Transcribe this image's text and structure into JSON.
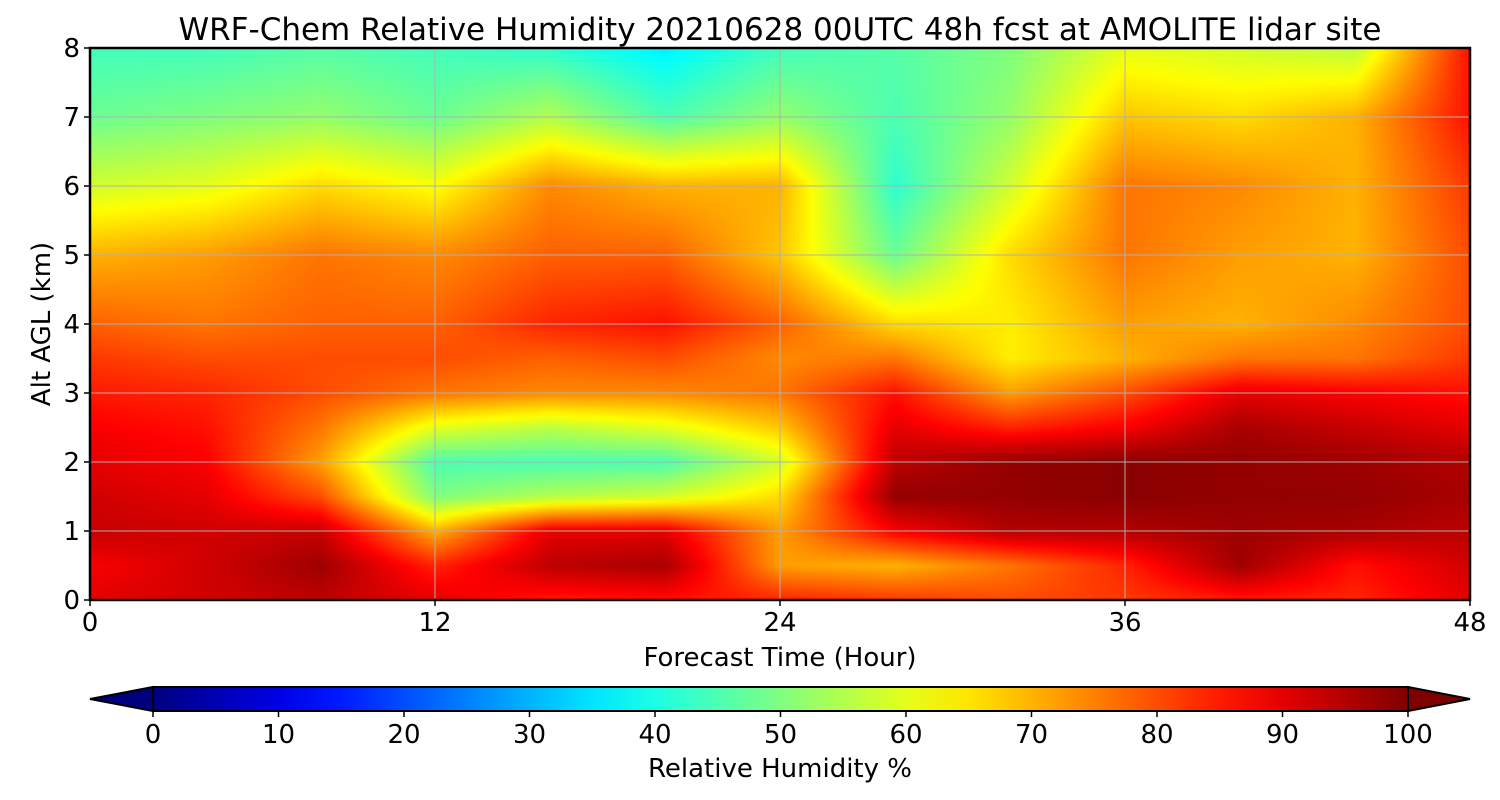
{
  "chart_data": {
    "type": "heatmap",
    "title": "WRF-Chem Relative Humidity 20210628 00UTC 48h fcst at AMOLITE lidar site",
    "xlabel": "Forecast Time (Hour)",
    "ylabel": "Alt AGL (km)",
    "xlim": [
      0,
      48
    ],
    "ylim": [
      0,
      8
    ],
    "xticks": [
      "0",
      "12",
      "24",
      "36",
      "48"
    ],
    "yticks": [
      "0",
      "1",
      "2",
      "3",
      "4",
      "5",
      "6",
      "7",
      "8"
    ],
    "grid": true,
    "colormap": "jet",
    "colorbar": {
      "label": "Relative Humidity %",
      "min": 0,
      "max": 100,
      "ticks": [
        "0",
        "10",
        "20",
        "30",
        "40",
        "50",
        "60",
        "70",
        "80",
        "90",
        "100"
      ],
      "extend": "both"
    },
    "x": [
      0,
      4,
      8,
      12,
      16,
      20,
      24,
      28,
      32,
      36,
      40,
      44,
      48
    ],
    "y": [
      0,
      0.5,
      1,
      1.5,
      2,
      2.5,
      3,
      3.5,
      4,
      5,
      6,
      7,
      8
    ],
    "z": [
      [
        90,
        92,
        94,
        90,
        85,
        86,
        84,
        82,
        80,
        82,
        85,
        84,
        90
      ],
      [
        88,
        92,
        97,
        84,
        94,
        96,
        72,
        70,
        76,
        84,
        97,
        86,
        92
      ],
      [
        93,
        92,
        93,
        70,
        90,
        90,
        72,
        88,
        95,
        95,
        97,
        96,
        94
      ],
      [
        92,
        90,
        80,
        50,
        55,
        58,
        66,
        98,
        98,
        99,
        98,
        98,
        96
      ],
      [
        90,
        88,
        72,
        45,
        45,
        45,
        58,
        94,
        98,
        99,
        98,
        97,
        95
      ],
      [
        88,
        86,
        76,
        60,
        56,
        60,
        68,
        90,
        84,
        88,
        96,
        93,
        90
      ],
      [
        85,
        84,
        80,
        76,
        74,
        74,
        76,
        86,
        72,
        80,
        90,
        88,
        86
      ],
      [
        82,
        80,
        80,
        80,
        78,
        80,
        74,
        76,
        64,
        70,
        76,
        76,
        82
      ],
      [
        78,
        76,
        78,
        78,
        84,
        86,
        78,
        66,
        64,
        72,
        70,
        74,
        80
      ],
      [
        70,
        72,
        76,
        74,
        78,
        78,
        68,
        48,
        66,
        76,
        72,
        70,
        80
      ],
      [
        58,
        60,
        66,
        62,
        74,
        70,
        70,
        42,
        58,
        76,
        74,
        70,
        82
      ],
      [
        48,
        50,
        52,
        48,
        55,
        45,
        52,
        45,
        52,
        68,
        66,
        70,
        86
      ],
      [
        44,
        44,
        46,
        44,
        42,
        36,
        44,
        46,
        50,
        60,
        58,
        56,
        86
      ]
    ]
  }
}
